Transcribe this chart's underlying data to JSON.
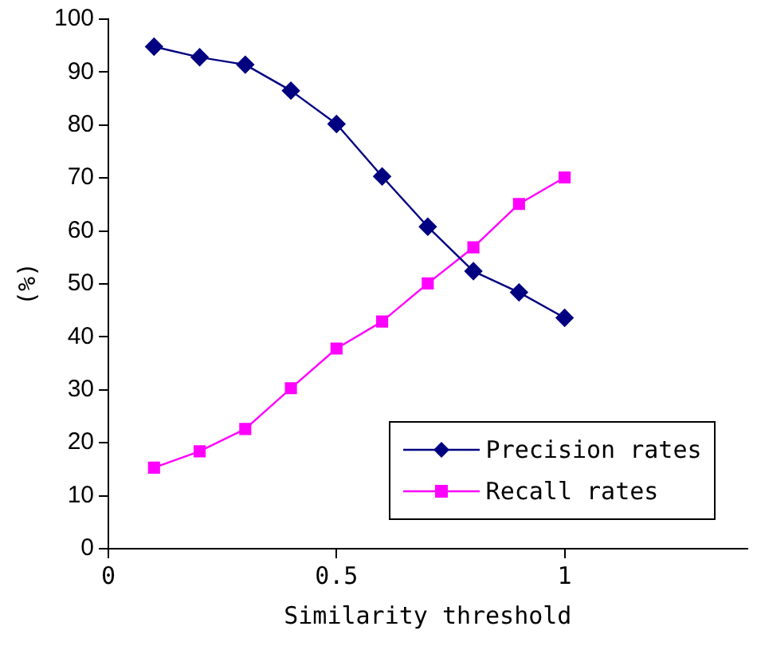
{
  "chart_data": {
    "type": "line",
    "xlabel": "Similarity threshold",
    "ylabel": "(%)",
    "x": [
      0.1,
      0.2,
      0.3,
      0.4,
      0.5,
      0.6,
      0.7,
      0.8,
      0.9,
      1.0
    ],
    "series": [
      {
        "name": "Precision rates",
        "color": "#000080",
        "marker": "diamond",
        "values": [
          94.8,
          92.8,
          91.4,
          86.5,
          80.2,
          70.3,
          60.8,
          52.4,
          48.4,
          43.6
        ]
      },
      {
        "name": "Recall rates",
        "color": "#ff00ff",
        "marker": "square",
        "values": [
          15.3,
          18.4,
          22.6,
          30.3,
          37.8,
          42.9,
          50.1,
          56.9,
          65.1,
          70.1
        ]
      }
    ],
    "xlim": [
      0,
      1.4
    ],
    "xticks": [
      0,
      0.5,
      1
    ],
    "ylim": [
      0,
      100
    ],
    "yticks": [
      0,
      10,
      20,
      30,
      40,
      50,
      60,
      70,
      80,
      90,
      100
    ],
    "grid": false,
    "legend": "bottom right",
    "line_style": "solid"
  }
}
